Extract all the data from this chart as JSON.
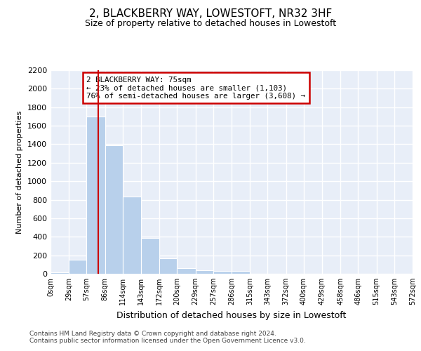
{
  "title": "2, BLACKBERRY WAY, LOWESTOFT, NR32 3HF",
  "subtitle": "Size of property relative to detached houses in Lowestoft",
  "xlabel": "Distribution of detached houses by size in Lowestoft",
  "ylabel": "Number of detached properties",
  "bin_edges": [
    0,
    29,
    57,
    86,
    114,
    143,
    172,
    200,
    229,
    257,
    286,
    315,
    343,
    372,
    400,
    429,
    458,
    486,
    515,
    543,
    572
  ],
  "bar_values": [
    15,
    155,
    1700,
    1390,
    835,
    385,
    165,
    62,
    35,
    28,
    28,
    0,
    0,
    0,
    0,
    0,
    0,
    0,
    0,
    0
  ],
  "bar_color": "#b8d0eb",
  "bg_color": "#e8eef8",
  "grid_color": "#ffffff",
  "vline_x": 75,
  "vline_color": "#cc0000",
  "annotation_text": "2 BLACKBERRY WAY: 75sqm\n← 23% of detached houses are smaller (1,103)\n76% of semi-detached houses are larger (3,608) →",
  "annotation_box_color": "#cc0000",
  "ylim_max": 2200,
  "yticks": [
    0,
    200,
    400,
    600,
    800,
    1000,
    1200,
    1400,
    1600,
    1800,
    2000,
    2200
  ],
  "tick_labels": [
    "0sqm",
    "29sqm",
    "57sqm",
    "86sqm",
    "114sqm",
    "143sqm",
    "172sqm",
    "200sqm",
    "229sqm",
    "257sqm",
    "286sqm",
    "315sqm",
    "343sqm",
    "372sqm",
    "400sqm",
    "429sqm",
    "458sqm",
    "486sqm",
    "515sqm",
    "543sqm",
    "572sqm"
  ],
  "footer_line1": "Contains HM Land Registry data © Crown copyright and database right 2024.",
  "footer_line2": "Contains public sector information licensed under the Open Government Licence v3.0."
}
